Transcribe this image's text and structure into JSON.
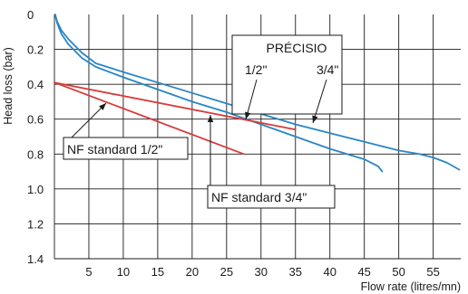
{
  "chart_data": {
    "type": "line",
    "xlabel": "Flow rate (litres/mn)",
    "ylabel": "Head loss (bar)",
    "xlim": [
      0,
      59
    ],
    "ylim": [
      1.4,
      0
    ],
    "y_inverted": true,
    "grid": true,
    "x_ticks": [
      5,
      10,
      15,
      20,
      25,
      30,
      35,
      40,
      45,
      50,
      55
    ],
    "y_ticks": [
      0,
      0.2,
      0.4,
      0.6,
      0.8,
      1.0,
      1.2,
      1.4
    ],
    "y_tick_labels": [
      "0",
      "0.2",
      "0.4",
      "0.6",
      "0.8",
      "1.0",
      "1.2",
      "1.4"
    ],
    "group_label": "PRÉCISIO",
    "series": [
      {
        "name": "1/2\"",
        "color": "#2a86c4",
        "x": [
          0.1,
          0.4,
          1,
          2,
          3,
          4,
          6,
          10,
          15,
          20,
          25,
          30,
          35,
          40,
          45,
          46,
          47,
          47.6
        ],
        "y": [
          0.0,
          0.05,
          0.11,
          0.17,
          0.21,
          0.25,
          0.3,
          0.36,
          0.43,
          0.5,
          0.56,
          0.63,
          0.7,
          0.77,
          0.83,
          0.85,
          0.87,
          0.9
        ]
      },
      {
        "name": "3/4\"",
        "color": "#2a86c4",
        "x": [
          0.1,
          0.4,
          1,
          2,
          3,
          4,
          6,
          10,
          15,
          20,
          25,
          30,
          35,
          40,
          45,
          50,
          53,
          55,
          57,
          58.8
        ],
        "y": [
          0.0,
          0.04,
          0.09,
          0.14,
          0.18,
          0.22,
          0.28,
          0.33,
          0.39,
          0.45,
          0.51,
          0.57,
          0.63,
          0.68,
          0.73,
          0.78,
          0.8,
          0.82,
          0.85,
          0.89
        ]
      },
      {
        "name": "NF standard 1/2\"",
        "color": "#d83a3a",
        "x": [
          0,
          27.5
        ],
        "y": [
          0.39,
          0.8
        ]
      },
      {
        "name": "NF standard 3/4\"",
        "color": "#d83a3a",
        "x": [
          0,
          35
        ],
        "y": [
          0.39,
          0.66
        ]
      }
    ],
    "annotations": {
      "nf_half": "NF standard 1/2\"",
      "nf_three_quarter": "NF standard 3/4\"",
      "half": "1/2\"",
      "three_quarter": "3/4\""
    }
  }
}
